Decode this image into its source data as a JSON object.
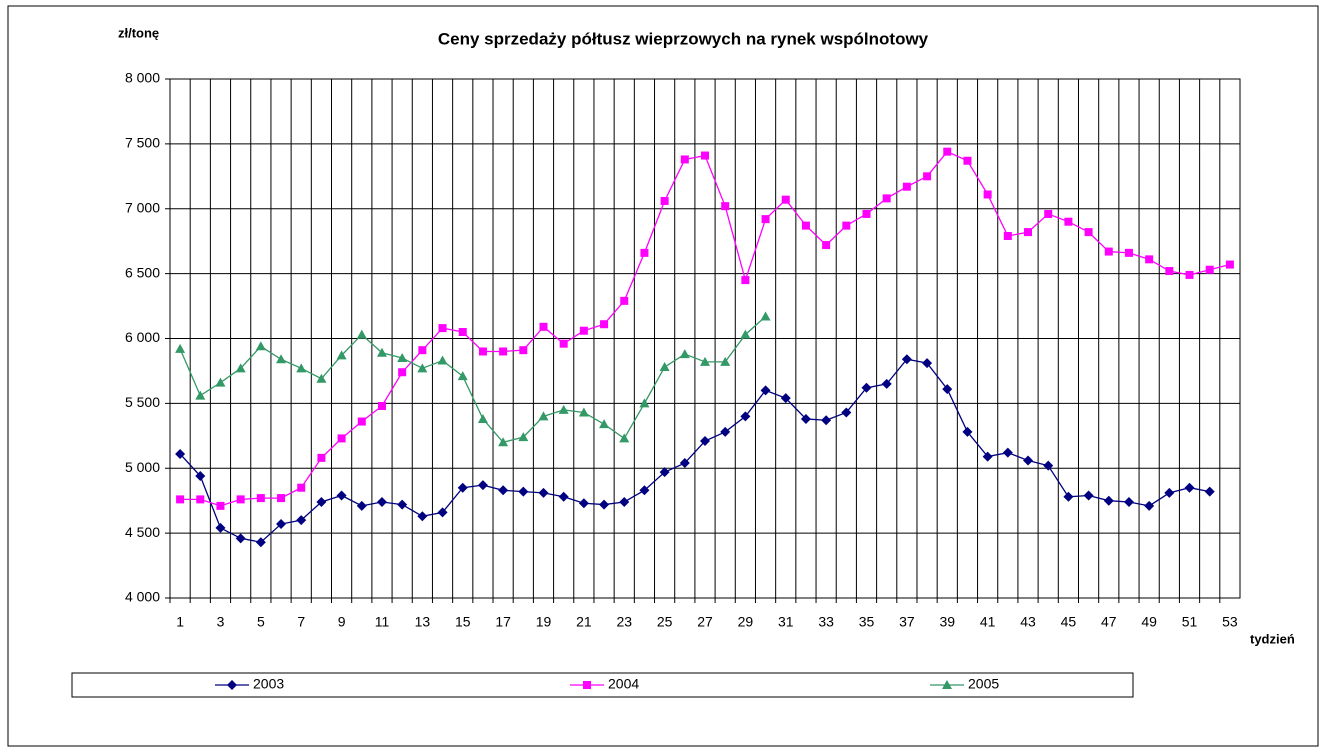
{
  "chart_data": {
    "type": "line",
    "title": "Ceny sprzedaży półtusz wieprzowych na rynek wspólnotowy",
    "y_label": "zł/tonę",
    "x_label": "tydzień",
    "categories": [
      1,
      null,
      3,
      null,
      5,
      null,
      7,
      null,
      9,
      null,
      11,
      null,
      13,
      null,
      15,
      null,
      17,
      null,
      19,
      null,
      21,
      null,
      23,
      null,
      25,
      null,
      27,
      null,
      29,
      null,
      31,
      null,
      33,
      null,
      35,
      null,
      37,
      null,
      39,
      null,
      41,
      null,
      43,
      null,
      45,
      null,
      47,
      null,
      49,
      null,
      51,
      null,
      53
    ],
    "series": [
      {
        "name": "2003",
        "color": "#000080",
        "marker": "diamond",
        "values": [
          5110,
          4940,
          4540,
          4460,
          4430,
          4570,
          4600,
          4740,
          4790,
          4710,
          4740,
          4720,
          4630,
          4660,
          4850,
          4870,
          4830,
          4820,
          4810,
          4780,
          4730,
          4720,
          4740,
          4830,
          4970,
          5040,
          5210,
          5280,
          5400,
          5600,
          5540,
          5380,
          5370,
          5430,
          5620,
          5650,
          5840,
          5810,
          5610,
          5280,
          5090,
          5120,
          5060,
          5020,
          4780,
          4790,
          4750,
          4740,
          4710,
          4810,
          4850,
          4820,
          null
        ]
      },
      {
        "name": "2004",
        "color": "#ff00ff",
        "marker": "square",
        "values": [
          4760,
          4760,
          4710,
          4760,
          4770,
          4770,
          4850,
          5080,
          5230,
          5360,
          5480,
          5740,
          5910,
          6080,
          6050,
          5900,
          5900,
          5910,
          6090,
          5960,
          6060,
          6110,
          6290,
          6660,
          7060,
          7380,
          7410,
          7020,
          6450,
          6920,
          7070,
          6870,
          6720,
          6870,
          6960,
          7080,
          7170,
          7250,
          7440,
          7370,
          7110,
          6790,
          6820,
          6960,
          6900,
          6820,
          6670,
          6660,
          6610,
          6520,
          6490,
          6530,
          6570
        ]
      },
      {
        "name": "2005",
        "color": "#339966",
        "marker": "triangle",
        "values": [
          5920,
          5560,
          5660,
          5770,
          5940,
          5840,
          5770,
          5690,
          5870,
          6030,
          5890,
          5850,
          5770,
          5830,
          5710,
          5380,
          5200,
          5240,
          5400,
          5450,
          5430,
          5340,
          5230,
          5500,
          5780,
          5880,
          5820,
          5820,
          6030,
          6170,
          null,
          null,
          null,
          null,
          null,
          null,
          null,
          null,
          null,
          null,
          null,
          null,
          null,
          null,
          null,
          null,
          null,
          null,
          null,
          null,
          null,
          null,
          null
        ]
      }
    ],
    "ylim": [
      4000,
      8000
    ],
    "yticks": [
      {
        "value": 4000,
        "label": "4 000"
      },
      {
        "value": 4500,
        "label": "4 500"
      },
      {
        "value": 5000,
        "label": "5 000"
      },
      {
        "value": 5500,
        "label": "5 500"
      },
      {
        "value": 6000,
        "label": "6 000"
      },
      {
        "value": 6500,
        "label": "6 500"
      },
      {
        "value": 7000,
        "label": "7 000"
      },
      {
        "value": 7500,
        "label": "7 500"
      },
      {
        "value": 8000,
        "label": "8 000"
      }
    ],
    "grid": true
  }
}
